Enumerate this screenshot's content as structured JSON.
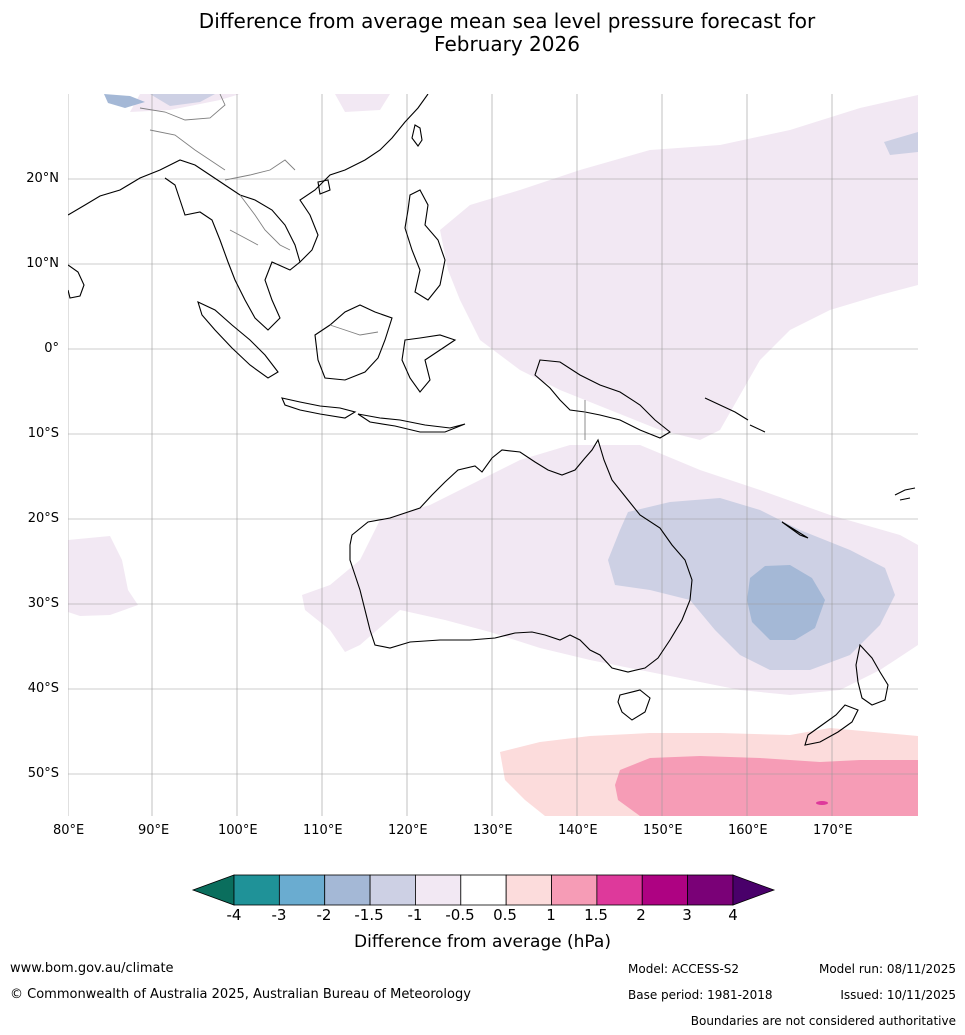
{
  "title": {
    "line1": "Difference from average mean sea level pressure forecast for",
    "line2": "February 2026"
  },
  "axes": {
    "longitudes": [
      "80°E",
      "90°E",
      "100°E",
      "110°E",
      "120°E",
      "130°E",
      "140°E",
      "150°E",
      "160°E",
      "170°E"
    ],
    "latitudes": [
      "20°N",
      "10°N",
      "0°",
      "10°S",
      "20°S",
      "30°S",
      "40°S",
      "50°S"
    ]
  },
  "legend": {
    "ticks": [
      "-4",
      "-3",
      "-2",
      "-1.5",
      "-1",
      "-0.5",
      "0.5",
      "1",
      "1.5",
      "2",
      "3",
      "4"
    ],
    "colors": [
      "#0a6e5d",
      "#1f9298",
      "#6aacd0",
      "#a4b8d6",
      "#cdd0e4",
      "#f2e8f3",
      "#ffffff",
      "#fcdcdc",
      "#f69cb6",
      "#de399b",
      "#ae0282",
      "#7a0177",
      "#49006a"
    ],
    "title": "Difference from average (hPa)"
  },
  "footer": {
    "website": "www.bom.gov.au/climate",
    "copyright": "© Commonwealth of Australia 2025, Australian Bureau of Meteorology",
    "model": "Model: ACCESS-S2",
    "base_period": "Base period: 1981-2018",
    "model_run": "Model run: 08/11/2025",
    "issued": "Issued: 10/11/2025",
    "disclaimer": "Boundaries are not considered authoritative"
  }
}
